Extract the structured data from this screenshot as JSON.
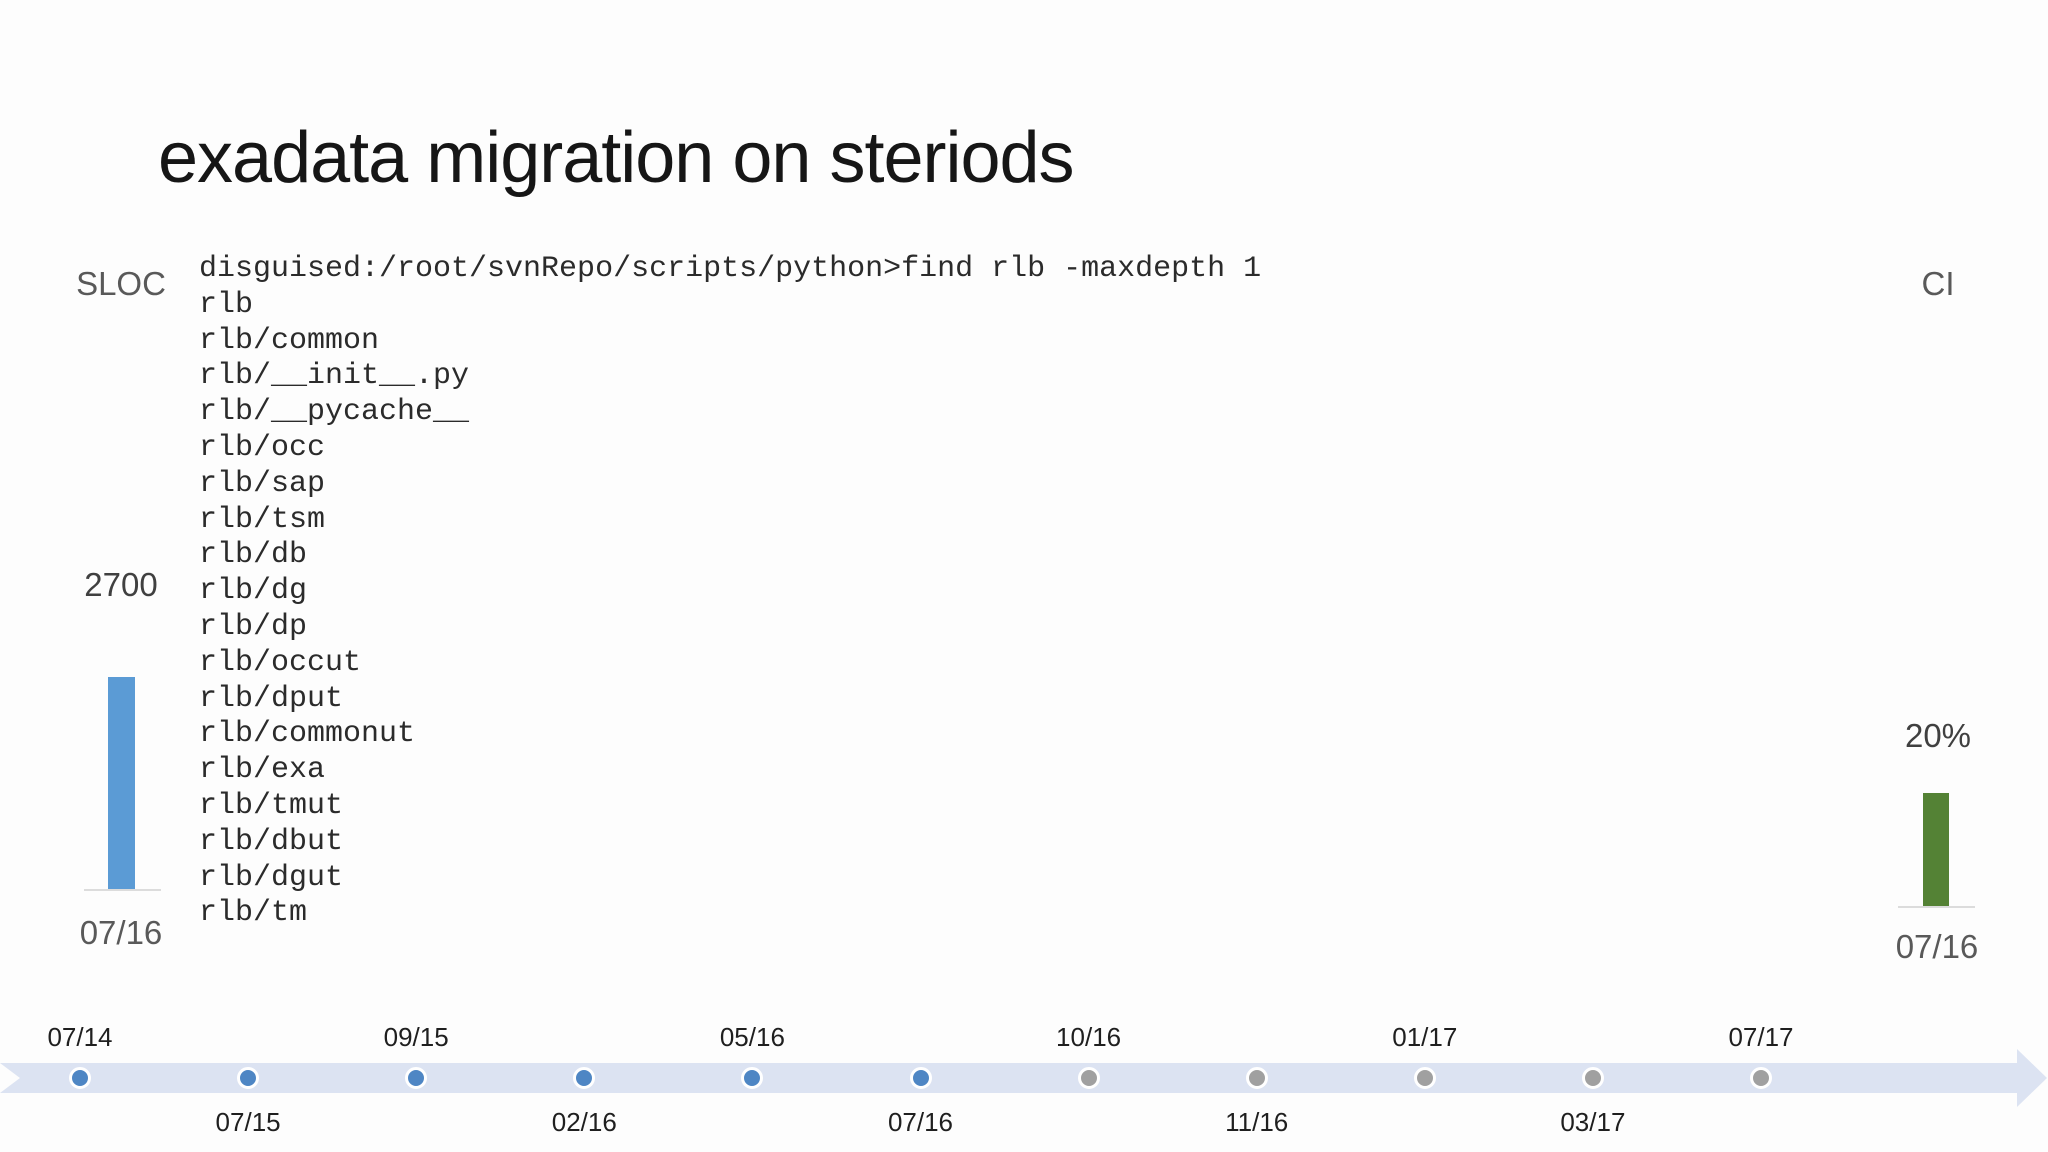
{
  "title": "exadata migration on steriods",
  "terminal": {
    "lines": [
      "disguised:/root/svnRepo/scripts/python>find rlb -maxdepth 1",
      "rlb",
      "rlb/common",
      "rlb/__init__.py",
      "rlb/__pycache__",
      "rlb/occ",
      "rlb/sap",
      "rlb/tsm",
      "rlb/db",
      "rlb/dg",
      "rlb/dp",
      "rlb/occut",
      "rlb/dput",
      "rlb/commonut",
      "rlb/exa",
      "rlb/tmut",
      "rlb/dbut",
      "rlb/dgut",
      "rlb/tm"
    ]
  },
  "sloc_chart": {
    "label": "SLOC",
    "value_label": "2700",
    "date_label": "07/16",
    "bar_color": "#5b9bd5"
  },
  "ci_chart": {
    "label": "CI",
    "value_label": "20%",
    "date_label": "07/16",
    "bar_color": "#548235"
  },
  "timeline": {
    "band_color": "#dce3f2",
    "done_dot_color": "#4e86c4",
    "pending_dot_color": "#a0a0a0",
    "milestones": [
      {
        "label": "07/14",
        "side": "above",
        "status": "done"
      },
      {
        "label": "07/15",
        "side": "below",
        "status": "done"
      },
      {
        "label": "09/15",
        "side": "above",
        "status": "done"
      },
      {
        "label": "02/16",
        "side": "below",
        "status": "done"
      },
      {
        "label": "05/16",
        "side": "above",
        "status": "done"
      },
      {
        "label": "07/16",
        "side": "below",
        "status": "done"
      },
      {
        "label": "10/16",
        "side": "above",
        "status": "pending"
      },
      {
        "label": "11/16",
        "side": "below",
        "status": "pending"
      },
      {
        "label": "01/17",
        "side": "above",
        "status": "pending"
      },
      {
        "label": "03/17",
        "side": "below",
        "status": "pending"
      },
      {
        "label": "07/17",
        "side": "above",
        "status": "pending"
      }
    ]
  },
  "chart_data": [
    {
      "type": "bar",
      "title": "SLOC",
      "categories": [
        "07/16"
      ],
      "values": [
        2700
      ],
      "ylabel": "SLOC",
      "bar_color": "#5b9bd5"
    },
    {
      "type": "bar",
      "title": "CI",
      "categories": [
        "07/16"
      ],
      "values": [
        20
      ],
      "ylabel": "CI (%)",
      "bar_color": "#548235"
    },
    {
      "type": "table",
      "title": "migration timeline",
      "categories": [
        "07/14",
        "07/15",
        "09/15",
        "02/16",
        "05/16",
        "07/16",
        "10/16",
        "11/16",
        "01/17",
        "03/17",
        "07/17"
      ],
      "values": [
        "done",
        "done",
        "done",
        "done",
        "done",
        "done",
        "pending",
        "pending",
        "pending",
        "pending",
        "pending"
      ]
    }
  ]
}
